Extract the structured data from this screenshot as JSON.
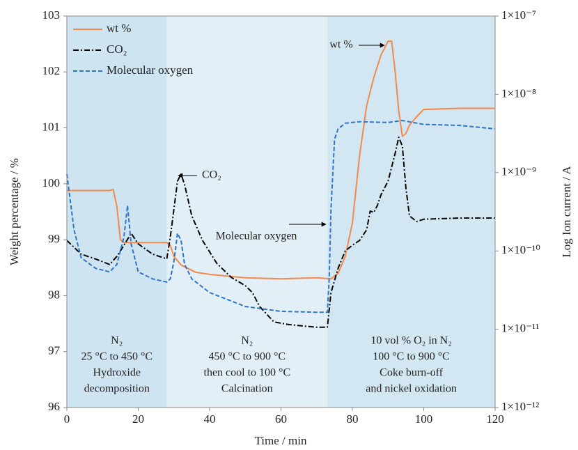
{
  "chart_data": {
    "type": "line",
    "xlabel": "Time / min",
    "ylabel": "Weight percentage / %",
    "y2label": "Log  Ion current / A",
    "xlim": [
      0,
      120
    ],
    "xticks": [
      0,
      20,
      40,
      60,
      80,
      100,
      120
    ],
    "ylim": [
      96,
      103
    ],
    "yticks": [
      96,
      97,
      98,
      99,
      100,
      101,
      102,
      103
    ],
    "y2lim": [
      1e-12,
      1e-07
    ],
    "y2log": true,
    "y2ticks": [
      {
        "value": 1e-12,
        "label": "1×10⁻¹²"
      },
      {
        "value": 1e-11,
        "label": "1×10⁻¹¹"
      },
      {
        "value": 1e-10,
        "label": "1×10⁻¹⁰"
      },
      {
        "value": 1e-09,
        "label": "1×10⁻⁹"
      },
      {
        "value": 1e-08,
        "label": "1×10⁻⁸"
      },
      {
        "value": 1e-07,
        "label": "1×10⁻⁷"
      }
    ],
    "legend": "top-left",
    "regions": [
      {
        "from": 0,
        "to": 28,
        "color": "#cfe4f1",
        "lines": [
          "N₂",
          "25 °C to 450 °C",
          "Hydroxide",
          "decomposition"
        ]
      },
      {
        "from": 28,
        "to": 73,
        "color": "#e3eff7",
        "lines": [
          "N₂",
          "450 °C to 900 °C",
          "then cool to 100 °C",
          "Calcination"
        ]
      },
      {
        "from": 73,
        "to": 120,
        "color": "#d3e7f3",
        "lines": [
          "10 vol % O₂ in N₂",
          "100 °C to 900 °C",
          "Coke burn-off",
          "and nickel oxidation"
        ]
      }
    ],
    "annotations": [
      "CO₂",
      "Molecular oxygen",
      "wt %"
    ],
    "series": [
      {
        "name": "wt %",
        "color": "#f4894b",
        "style": "solid",
        "x": [
          0,
          12,
          13,
          14,
          15,
          16,
          28,
          29,
          30,
          32,
          36,
          40,
          50,
          60,
          70,
          74,
          76,
          78,
          80,
          82,
          84,
          86,
          88,
          90,
          91,
          92,
          93,
          94,
          95,
          96,
          98,
          100,
          110,
          120
        ],
        "values": [
          99.88,
          99.88,
          99.9,
          99.6,
          99.0,
          98.95,
          98.95,
          98.9,
          98.7,
          98.55,
          98.42,
          98.38,
          98.32,
          98.3,
          98.32,
          98.3,
          98.4,
          98.7,
          99.3,
          100.5,
          101.4,
          101.9,
          102.3,
          102.55,
          102.55,
          102.0,
          101.3,
          100.85,
          100.9,
          101.05,
          101.2,
          101.33,
          101.35,
          101.35
        ]
      },
      {
        "name": "CO₂",
        "color": "#000000",
        "style": "dashdot",
        "axis": "y2",
        "x": [
          0,
          4,
          8,
          12,
          14,
          16,
          18,
          20,
          24,
          28,
          29,
          30,
          31,
          32,
          33,
          35,
          38,
          42,
          46,
          50,
          52,
          54,
          58,
          62,
          66,
          70,
          73,
          74,
          76,
          78,
          80,
          82,
          84,
          85,
          86,
          87,
          88,
          90,
          92,
          93,
          94,
          95,
          96,
          98,
          100,
          110,
          120
        ],
        "values": [
          1.36e-10,
          9.1e-11,
          7.9e-11,
          6.7e-11,
          8.5e-11,
          1.18e-10,
          1.68e-10,
          1.23e-10,
          9.1e-11,
          7.9e-11,
          1.51e-10,
          3.43e-10,
          7.8e-10,
          9.55e-10,
          7e-10,
          2.8e-10,
          1.36e-10,
          6.95e-11,
          4.61e-11,
          3.6e-11,
          2.94e-11,
          1.95e-11,
          1.24e-11,
          1.15e-11,
          1.1e-11,
          1.06e-11,
          1.06e-11,
          2.94e-11,
          6e-11,
          1e-10,
          1.18e-10,
          1.36e-10,
          1.86e-10,
          3.23e-10,
          3.1e-10,
          3.8e-10,
          5.18e-10,
          7.8e-10,
          1.77e-09,
          2.83e-09,
          2.17e-09,
          6.34e-10,
          2.8e-10,
          2.37e-10,
          2.54e-10,
          2.63e-10,
          2.63e-10
        ]
      },
      {
        "name": "Molecular oxygen",
        "color": "#2e74c9",
        "style": "dashed",
        "axis": "y2",
        "x": [
          0,
          2,
          4,
          8,
          12,
          14,
          16,
          17,
          18,
          20,
          24,
          28,
          29,
          30,
          31,
          32,
          33,
          35,
          40,
          50,
          60,
          70,
          73,
          73.5,
          74,
          75,
          76,
          78,
          82,
          90,
          94,
          100,
          110,
          120
        ],
        "values": [
          9.55e-10,
          1.86e-10,
          8.2e-11,
          6e-11,
          5.4e-11,
          6.7e-11,
          1.51e-10,
          3.8e-10,
          1.23e-10,
          5.4e-11,
          4.4e-11,
          4e-11,
          4.4e-11,
          7.4e-11,
          1.68e-10,
          1.36e-10,
          6.7e-11,
          4.4e-11,
          2.94e-11,
          1.95e-11,
          1.69e-11,
          1.65e-11,
          1.65e-11,
          4.4e-11,
          3.43e-10,
          2.66e-09,
          3.62e-09,
          4.27e-09,
          4.47e-09,
          4.37e-09,
          4.63e-09,
          4.13e-09,
          4.01e-09,
          3.62e-09
        ]
      }
    ]
  }
}
